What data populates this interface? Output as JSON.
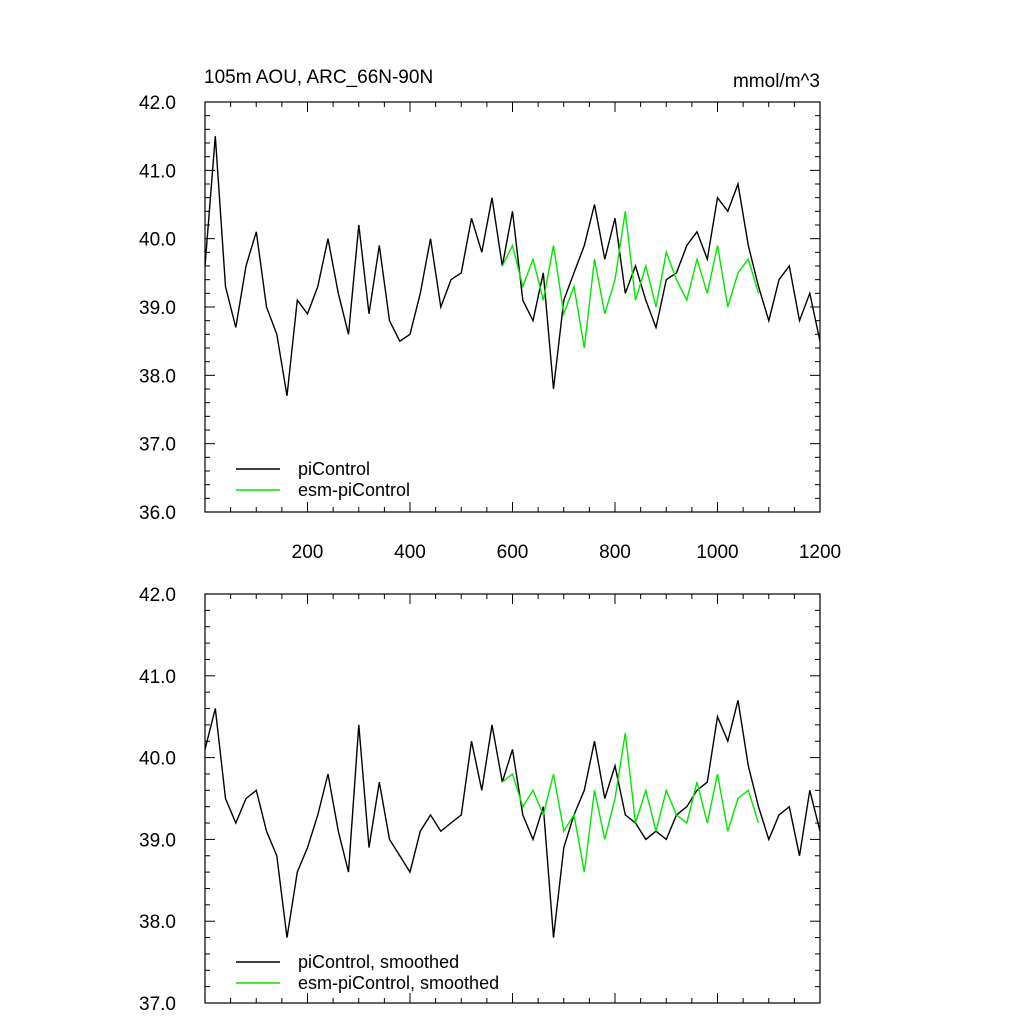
{
  "figure": {
    "title_left": "105m AOU, ARC_66N-90N",
    "title_right": "mmol/m^3"
  },
  "colors": {
    "piControl": "#000000",
    "esm_piControl": "#00e600"
  },
  "chart_data": [
    {
      "type": "line",
      "panel": "top",
      "title": "105m AOU, ARC_66N-90N",
      "units": "mmol/m^3",
      "xlim": [
        0,
        1200
      ],
      "ylim": [
        36.0,
        42.0
      ],
      "xticks": [
        200,
        400,
        600,
        800,
        1000,
        1200
      ],
      "xtick_labels": [
        "200",
        "400",
        "600",
        "800",
        "1000",
        "1200"
      ],
      "yticks": [
        36.0,
        37.0,
        38.0,
        39.0,
        40.0,
        41.0,
        42.0
      ],
      "ytick_labels": [
        "36.0",
        "37.0",
        "38.0",
        "39.0",
        "40.0",
        "41.0",
        "42.0"
      ],
      "legend": [
        "piControl",
        "esm-piControl"
      ],
      "legend_position": "bottom-left",
      "series": [
        {
          "name": "piControl",
          "color": "#000000",
          "x": [
            0,
            20,
            40,
            60,
            80,
            100,
            120,
            140,
            160,
            180,
            200,
            220,
            240,
            260,
            280,
            300,
            320,
            340,
            360,
            380,
            400,
            420,
            440,
            460,
            480,
            500,
            520,
            540,
            560,
            580,
            600,
            620,
            640,
            660,
            680,
            700,
            720,
            740,
            760,
            780,
            800,
            820,
            840,
            860,
            880,
            900,
            920,
            940,
            960,
            980,
            1000,
            1020,
            1040,
            1060,
            1080,
            1100,
            1120,
            1140,
            1160,
            1180,
            1200
          ],
          "values": [
            39.6,
            41.5,
            39.3,
            38.7,
            39.6,
            40.1,
            39.0,
            38.6,
            37.7,
            39.1,
            38.9,
            39.3,
            40.0,
            39.2,
            38.6,
            40.2,
            38.9,
            39.9,
            38.8,
            38.5,
            38.6,
            39.2,
            40.0,
            39.0,
            39.4,
            39.5,
            40.3,
            39.8,
            40.6,
            39.6,
            40.4,
            39.1,
            38.8,
            39.5,
            37.8,
            39.1,
            39.5,
            39.9,
            40.5,
            39.7,
            40.3,
            39.2,
            39.6,
            39.1,
            38.7,
            39.4,
            39.5,
            39.9,
            40.1,
            39.7,
            40.6,
            40.4,
            40.8,
            39.9,
            39.3,
            38.8,
            39.4,
            39.6,
            38.8,
            39.2,
            38.5
          ]
        },
        {
          "name": "esm-piControl",
          "color": "#00e600",
          "x": [
            580,
            600,
            620,
            640,
            660,
            680,
            700,
            720,
            740,
            760,
            780,
            800,
            820,
            840,
            860,
            880,
            900,
            920,
            940,
            960,
            980,
            1000,
            1020,
            1040,
            1060,
            1080
          ],
          "values": [
            39.6,
            39.9,
            39.3,
            39.7,
            39.1,
            39.9,
            38.9,
            39.3,
            38.4,
            39.7,
            38.9,
            39.4,
            40.4,
            39.1,
            39.6,
            39.0,
            39.8,
            39.4,
            39.1,
            39.7,
            39.2,
            39.9,
            39.0,
            39.5,
            39.7,
            39.2
          ]
        }
      ]
    },
    {
      "type": "line",
      "panel": "bottom",
      "xlim": [
        0,
        1200
      ],
      "ylim": [
        37.0,
        42.0
      ],
      "xticks": [
        200,
        400,
        600,
        800,
        1000,
        1200
      ],
      "yticks": [
        37.0,
        38.0,
        39.0,
        40.0,
        41.0,
        42.0
      ],
      "ytick_labels": [
        "37.0",
        "38.0",
        "39.0",
        "40.0",
        "41.0",
        "42.0"
      ],
      "legend": [
        "piControl, smoothed",
        "esm-piControl, smoothed"
      ],
      "legend_position": "bottom-left",
      "series": [
        {
          "name": "piControl, smoothed",
          "color": "#000000",
          "x": [
            0,
            20,
            40,
            60,
            80,
            100,
            120,
            140,
            160,
            180,
            200,
            220,
            240,
            260,
            280,
            300,
            320,
            340,
            360,
            380,
            400,
            420,
            440,
            460,
            480,
            500,
            520,
            540,
            560,
            580,
            600,
            620,
            640,
            660,
            680,
            700,
            720,
            740,
            760,
            780,
            800,
            820,
            840,
            860,
            880,
            900,
            920,
            940,
            960,
            980,
            1000,
            1020,
            1040,
            1060,
            1080,
            1100,
            1120,
            1140,
            1160,
            1180,
            1200
          ],
          "values": [
            40.1,
            40.6,
            39.5,
            39.2,
            39.5,
            39.6,
            39.1,
            38.8,
            37.8,
            38.6,
            38.9,
            39.3,
            39.8,
            39.1,
            38.6,
            40.4,
            38.9,
            39.7,
            39.0,
            38.8,
            38.6,
            39.1,
            39.3,
            39.1,
            39.2,
            39.3,
            40.2,
            39.6,
            40.4,
            39.7,
            40.1,
            39.3,
            39.0,
            39.4,
            37.8,
            38.9,
            39.3,
            39.6,
            40.2,
            39.5,
            39.9,
            39.3,
            39.2,
            39.0,
            39.1,
            39.0,
            39.3,
            39.4,
            39.6,
            39.7,
            40.5,
            40.2,
            40.7,
            39.9,
            39.4,
            39.0,
            39.3,
            39.4,
            38.8,
            39.6,
            39.1
          ]
        },
        {
          "name": "esm-piControl, smoothed",
          "color": "#00e600",
          "x": [
            580,
            600,
            620,
            640,
            660,
            680,
            700,
            720,
            740,
            760,
            780,
            800,
            820,
            840,
            860,
            880,
            900,
            920,
            940,
            960,
            980,
            1000,
            1020,
            1040,
            1060,
            1080
          ],
          "values": [
            39.7,
            39.8,
            39.4,
            39.6,
            39.3,
            39.8,
            39.1,
            39.3,
            38.6,
            39.6,
            39.0,
            39.5,
            40.3,
            39.2,
            39.6,
            39.1,
            39.6,
            39.3,
            39.2,
            39.7,
            39.2,
            39.8,
            39.1,
            39.5,
            39.6,
            39.2
          ]
        }
      ]
    }
  ]
}
